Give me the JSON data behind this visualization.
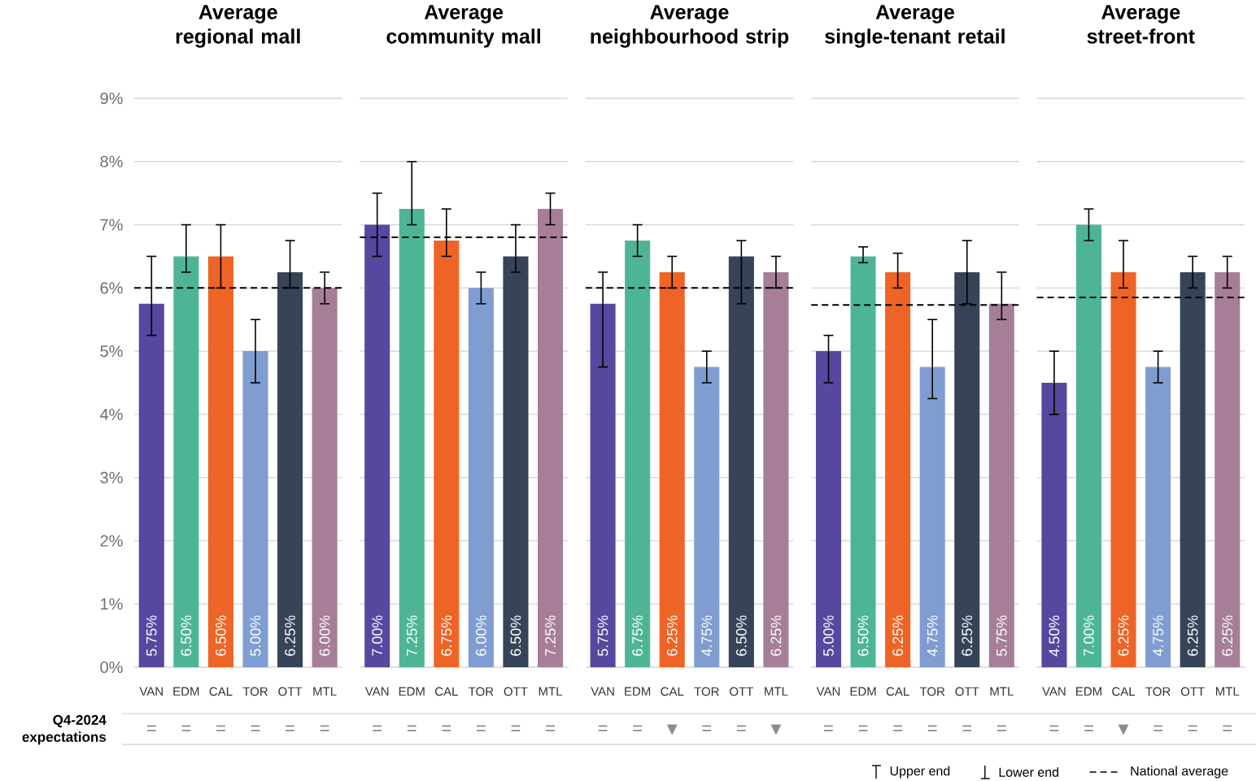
{
  "chart_data": [
    {
      "type": "bar",
      "title": "Average regional mall",
      "categories": [
        "VAN",
        "EDM",
        "CAL",
        "TOR",
        "OTT",
        "MTL"
      ],
      "values": [
        5.75,
        6.5,
        6.5,
        5.0,
        6.25,
        6.0
      ],
      "colors": [
        "#58479e",
        "#4db596",
        "#ee6426",
        "#7f9dd1",
        "#374357",
        "#a67e97"
      ],
      "errors": [
        [
          5.25,
          6.5
        ],
        [
          6.25,
          7.0
        ],
        [
          6.0,
          7.0
        ],
        [
          4.5,
          5.5
        ],
        [
          6.0,
          6.75
        ],
        [
          5.75,
          6.25
        ]
      ],
      "value_labels": [
        "5.75%",
        "6.50%",
        "6.50%",
        "5.00%",
        "6.25%",
        "6.00%"
      ],
      "ylim": [
        0,
        9
      ],
      "yticks": [
        {
          "value": 0,
          "label": "0%"
        },
        {
          "value": 1,
          "label": "1%"
        },
        {
          "value": 2,
          "label": "2%"
        },
        {
          "value": 3,
          "label": "3%"
        },
        {
          "value": 4,
          "label": "4%"
        },
        {
          "value": 5,
          "label": "5%"
        },
        {
          "value": 6,
          "label": "6%"
        },
        {
          "value": 7,
          "label": "7%"
        },
        {
          "value": 8,
          "label": "8%"
        },
        {
          "value": 9,
          "label": "9%"
        }
      ],
      "grid": "y",
      "ref_lines": [
        {
          "axis": "y",
          "value": 6.0,
          "line_style": "dashed",
          "color": "#000000"
        }
      ],
      "annotations": [
        "Q4-2024 expectations",
        "=",
        "=",
        "=",
        "=",
        "=",
        "="
      ]
    },
    {
      "type": "bar",
      "title": "Average community mall",
      "categories": [
        "VAN",
        "EDM",
        "CAL",
        "TOR",
        "OTT",
        "MTL"
      ],
      "values": [
        7.0,
        7.25,
        6.75,
        6.0,
        6.5,
        7.25
      ],
      "colors": [
        "#58479e",
        "#4db596",
        "#ee6426",
        "#7f9dd1",
        "#374357",
        "#a67e97"
      ],
      "errors": [
        [
          6.5,
          7.5
        ],
        [
          7.0,
          8.0
        ],
        [
          6.5,
          7.25
        ],
        [
          5.75,
          6.25
        ],
        [
          6.25,
          7.0
        ],
        [
          7.0,
          7.5
        ]
      ],
      "value_labels": [
        "7.00%",
        "7.25%",
        "6.75%",
        "6.00%",
        "6.50%",
        "7.25%"
      ],
      "ylim": [
        0,
        9
      ],
      "yticks": [
        {
          "value": 0,
          "label": null
        },
        {
          "value": 1,
          "label": null
        },
        {
          "value": 2,
          "label": null
        },
        {
          "value": 3,
          "label": null
        },
        {
          "value": 4,
          "label": null
        },
        {
          "value": 5,
          "label": null
        },
        {
          "value": 6,
          "label": null
        },
        {
          "value": 7,
          "label": null
        },
        {
          "value": 8,
          "label": null
        },
        {
          "value": 9,
          "label": null
        }
      ],
      "tick_labels": "x",
      "grid": "y",
      "ref_lines": [
        {
          "axis": "y",
          "value": 6.8,
          "line_style": "dashed",
          "color": "#000000"
        }
      ],
      "annotations": [
        "=",
        "=",
        "=",
        "=",
        "=",
        "="
      ]
    },
    {
      "type": "bar",
      "title": "Average neighbourhood strip",
      "categories": [
        "VAN",
        "EDM",
        "CAL",
        "TOR",
        "OTT",
        "MTL"
      ],
      "values": [
        5.75,
        6.75,
        6.25,
        4.75,
        6.5,
        6.25
      ],
      "colors": [
        "#58479e",
        "#4db596",
        "#ee6426",
        "#7f9dd1",
        "#374357",
        "#a67e97"
      ],
      "errors": [
        [
          4.75,
          6.25
        ],
        [
          6.5,
          7.0
        ],
        [
          6.0,
          6.5
        ],
        [
          4.5,
          5.0
        ],
        [
          5.75,
          6.75
        ],
        [
          6.0,
          6.5
        ]
      ],
      "value_labels": [
        "5.75%",
        "6.75%",
        "6.25%",
        "4.75%",
        "6.50%",
        "6.25%"
      ],
      "ylim": [
        0,
        9
      ],
      "yticks": [
        {
          "value": 0,
          "label": null
        },
        {
          "value": 1,
          "label": null
        },
        {
          "value": 2,
          "label": null
        },
        {
          "value": 3,
          "label": null
        },
        {
          "value": 4,
          "label": null
        },
        {
          "value": 5,
          "label": null
        },
        {
          "value": 6,
          "label": null
        },
        {
          "value": 7,
          "label": null
        },
        {
          "value": 8,
          "label": null
        },
        {
          "value": 9,
          "label": null
        }
      ],
      "tick_labels": "x",
      "grid": "y",
      "ref_lines": [
        {
          "axis": "y",
          "value": 6.0,
          "line_style": "dashed",
          "color": "#000000"
        }
      ],
      "annotations": [
        "=",
        "=",
        "▼",
        "=",
        "=",
        "▼"
      ]
    },
    {
      "type": "bar",
      "title": "Average single-tenant retail",
      "categories": [
        "VAN",
        "EDM",
        "CAL",
        "TOR",
        "OTT",
        "MTL"
      ],
      "values": [
        5.0,
        6.5,
        6.25,
        4.75,
        6.25,
        5.75
      ],
      "colors": [
        "#58479e",
        "#4db596",
        "#ee6426",
        "#7f9dd1",
        "#374357",
        "#a67e97"
      ],
      "errors": [
        [
          4.5,
          5.25
        ],
        [
          6.4,
          6.65
        ],
        [
          6.0,
          6.55
        ],
        [
          4.25,
          5.5
        ],
        [
          5.75,
          6.75
        ],
        [
          5.5,
          6.25
        ]
      ],
      "value_labels": [
        "5.00%",
        "6.50%",
        "6.25%",
        "4.75%",
        "6.25%",
        "5.75%"
      ],
      "ylim": [
        0,
        9
      ],
      "yticks": [
        {
          "value": 0,
          "label": null
        },
        {
          "value": 1,
          "label": null
        },
        {
          "value": 2,
          "label": null
        },
        {
          "value": 3,
          "label": null
        },
        {
          "value": 4,
          "label": null
        },
        {
          "value": 5,
          "label": null
        },
        {
          "value": 6,
          "label": null
        },
        {
          "value": 7,
          "label": null
        },
        {
          "value": 8,
          "label": null
        },
        {
          "value": 9,
          "label": null
        }
      ],
      "tick_labels": "x",
      "grid": "y",
      "ref_lines": [
        {
          "axis": "y",
          "value": 5.73,
          "line_style": "dashed",
          "color": "#000000"
        }
      ],
      "annotations": [
        "=",
        "=",
        "=",
        "=",
        "=",
        "="
      ]
    },
    {
      "type": "bar",
      "title": "Average street-front",
      "categories": [
        "VAN",
        "EDM",
        "CAL",
        "TOR",
        "OTT",
        "MTL"
      ],
      "values": [
        4.5,
        7.0,
        6.25,
        4.75,
        6.25,
        6.25
      ],
      "colors": [
        "#58479e",
        "#4db596",
        "#ee6426",
        "#7f9dd1",
        "#374357",
        "#a67e97"
      ],
      "errors": [
        [
          4.0,
          5.0
        ],
        [
          6.75,
          7.25
        ],
        [
          6.0,
          6.75
        ],
        [
          4.5,
          5.0
        ],
        [
          6.0,
          6.5
        ],
        [
          6.0,
          6.5
        ]
      ],
      "value_labels": [
        "4.50%",
        "7.00%",
        "6.25%",
        "4.75%",
        "6.25%",
        "6.25%"
      ],
      "ylim": [
        0,
        9
      ],
      "yticks": [
        {
          "value": 0,
          "label": null
        },
        {
          "value": 1,
          "label": null
        },
        {
          "value": 2,
          "label": null
        },
        {
          "value": 3,
          "label": null
        },
        {
          "value": 4,
          "label": null
        },
        {
          "value": 5,
          "label": null
        },
        {
          "value": 6,
          "label": null
        },
        {
          "value": 7,
          "label": null
        },
        {
          "value": 8,
          "label": null
        },
        {
          "value": 9,
          "label": null
        }
      ],
      "tick_labels": "x",
      "grid": "y",
      "legend": "bottom right",
      "ref_lines": [
        {
          "axis": "y",
          "value": 5.85,
          "line_style": "dashed",
          "color": "#000000",
          "label": "National average"
        }
      ],
      "annotations": [
        "Upper end",
        "Lower end",
        "=",
        "=",
        "▼",
        "=",
        "=",
        "="
      ]
    }
  ]
}
